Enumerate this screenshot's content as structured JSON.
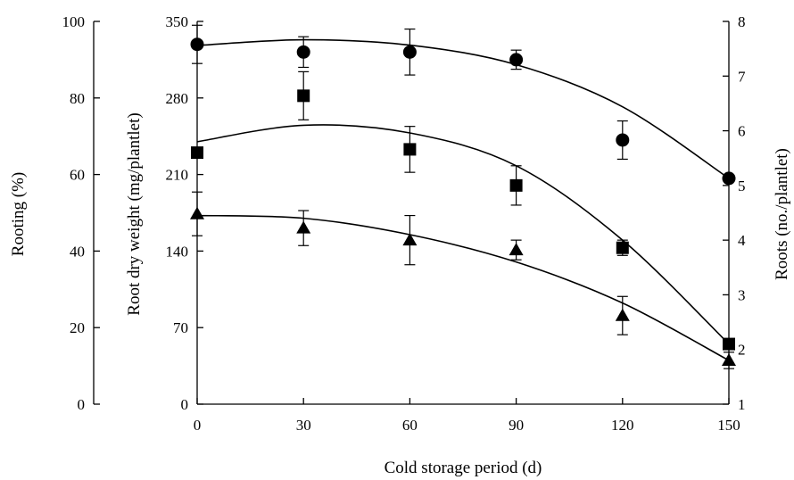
{
  "chart_data": {
    "type": "scatter",
    "title": "",
    "xlabel": "Cold storage period (d)",
    "x_ticks": [
      0,
      30,
      60,
      90,
      120,
      150
    ],
    "xlim": [
      0,
      150
    ],
    "axes": {
      "rooting": {
        "label": "Rooting (%)",
        "ylim": [
          0,
          100
        ],
        "ticks": [
          0,
          20,
          40,
          60,
          80,
          100
        ]
      },
      "dry_weight": {
        "label": "Root dry weight (mg/plantlet)",
        "ylim": [
          0,
          350
        ],
        "ticks": [
          0,
          70,
          140,
          210,
          280,
          350
        ]
      },
      "roots": {
        "label": "Roots (no./plantlet)",
        "ylim": [
          1,
          8
        ],
        "ticks": [
          1,
          2,
          3,
          4,
          5,
          6,
          7,
          8
        ]
      }
    },
    "grid": false,
    "legend": "none",
    "series": [
      {
        "marker": "circle",
        "axis": "rooting",
        "x": [
          0,
          30,
          60,
          90,
          120,
          150
        ],
        "y": [
          94,
          92,
          92,
          90,
          69,
          59
        ],
        "err": [
          5,
          4,
          6,
          2.5,
          5,
          0
        ],
        "fit": [
          93.7,
          95.2,
          93.8,
          88.7,
          77.7,
          59
        ]
      },
      {
        "marker": "square",
        "axis": "dry_weight",
        "x": [
          0,
          30,
          60,
          90,
          120,
          150
        ],
        "y": [
          230,
          282,
          233,
          200,
          143,
          55
        ],
        "err": [
          0,
          22,
          21,
          18,
          7,
          0
        ],
        "fit": [
          240,
          255,
          248,
          218,
          150,
          55
        ]
      },
      {
        "marker": "triangle",
        "axis": "roots",
        "x": [
          0,
          30,
          60,
          90,
          120,
          150
        ],
        "y": [
          4.48,
          4.22,
          4.0,
          3.82,
          2.62,
          1.8
        ],
        "err": [
          0.4,
          0.32,
          0.45,
          0.18,
          0.35,
          0.15
        ],
        "fit": [
          4.45,
          4.4,
          4.1,
          3.6,
          2.85,
          1.8
        ]
      }
    ]
  }
}
